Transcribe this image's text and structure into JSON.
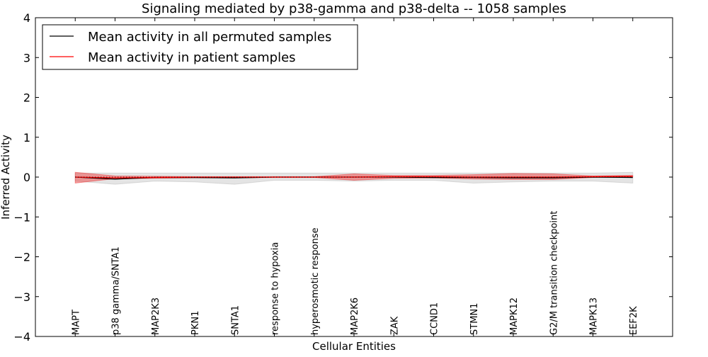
{
  "chart_data": {
    "type": "line",
    "title": "Signaling mediated by p38-gamma and p38-delta -- 1058 samples",
    "xlabel": "Cellular Entities",
    "ylabel": "Inferred Activity",
    "ylim": [
      -4,
      4
    ],
    "xlim": [
      -1,
      15
    ],
    "yticks": [
      4,
      3,
      2,
      1,
      0,
      -1,
      -2,
      -3,
      -4
    ],
    "ytick_labels": [
      "4",
      "3",
      "2",
      "1",
      "0",
      "−1",
      "−2",
      "−3",
      "−4"
    ],
    "categories": [
      "MAPT",
      "p38 gamma/SNTA1",
      "MAP2K3",
      "PKN1",
      "SNTA1",
      "response to hypoxia",
      "hyperosmotic response",
      "MAP2K6",
      "ZAK",
      "CCND1",
      "STMN1",
      "MAPK12",
      "G2/M transition checkpoint",
      "MAPK13",
      "EEF2K"
    ],
    "legend_position": "top-left",
    "series": [
      {
        "name": "Mean activity in all permuted samples",
        "color": "#000000",
        "values": [
          0.0,
          -0.05,
          -0.01,
          -0.01,
          -0.02,
          0.0,
          0.0,
          0.0,
          0.0,
          -0.01,
          -0.01,
          -0.02,
          -0.02,
          0.0,
          -0.01
        ],
        "band_upper": [
          0.1,
          0.1,
          0.1,
          0.1,
          0.1,
          0.1,
          0.1,
          0.1,
          0.1,
          0.1,
          0.1,
          0.1,
          0.1,
          0.1,
          0.12
        ],
        "band_lower": [
          -0.1,
          -0.18,
          -0.1,
          -0.12,
          -0.18,
          -0.08,
          -0.08,
          -0.1,
          -0.08,
          -0.08,
          -0.15,
          -0.12,
          -0.1,
          -0.1,
          -0.15
        ],
        "band_color": "#bbbbbb"
      },
      {
        "name": "Mean activity in patient samples",
        "color": "#ff0000",
        "values": [
          0.0,
          -0.02,
          -0.01,
          0.0,
          0.0,
          0.0,
          0.0,
          0.0,
          0.01,
          0.01,
          0.0,
          0.0,
          0.0,
          0.01,
          0.02
        ],
        "band_upper": [
          0.12,
          0.03,
          0.02,
          0.01,
          0.01,
          0.01,
          0.01,
          0.08,
          0.04,
          0.04,
          0.06,
          0.09,
          0.08,
          0.03,
          0.04
        ],
        "band_lower": [
          -0.15,
          -0.04,
          -0.03,
          -0.02,
          -0.02,
          -0.01,
          -0.01,
          -0.08,
          -0.03,
          -0.02,
          -0.05,
          -0.06,
          -0.06,
          -0.01,
          0.0
        ],
        "band_color": "#ee3333"
      }
    ]
  }
}
